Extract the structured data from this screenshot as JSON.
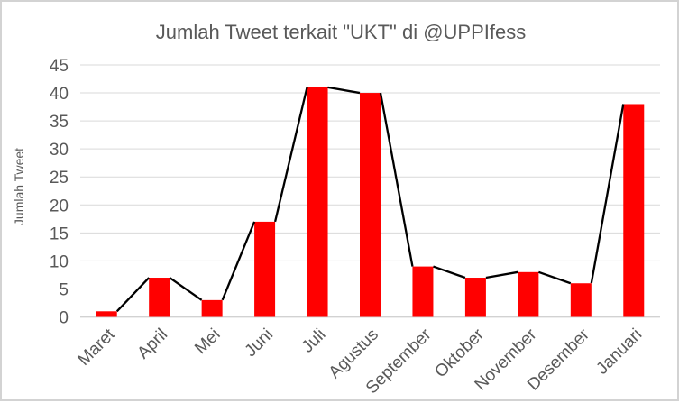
{
  "window": {
    "background": "#ffffff",
    "border_color": "#d3d3d3"
  },
  "chart_data": {
    "type": "bar",
    "subtype": "combo_bar_line",
    "title": "Jumlah Tweet terkait \"UKT\" di @UPPIfess",
    "xlabel": "",
    "ylabel": "Jumlah Tweet",
    "categories": [
      "Maret",
      "April",
      "Mei",
      "Juni",
      "Juli",
      "Agustus",
      "September",
      "Oktober",
      "November",
      "Desember",
      "Januari"
    ],
    "series": [
      {
        "name": "Jumlah Tweet (bars)",
        "type": "bar",
        "color": "#ff0000",
        "values": [
          1,
          7,
          3,
          17,
          41,
          40,
          9,
          7,
          8,
          6,
          38
        ]
      },
      {
        "name": "Jumlah Tweet (line)",
        "type": "line",
        "color": "#000000",
        "values": [
          1,
          7,
          3,
          17,
          41,
          40,
          9,
          7,
          8,
          6,
          38
        ]
      }
    ],
    "ylim": [
      0,
      45
    ],
    "ytick_step": 5,
    "ytick_labels": [
      "0",
      "5",
      "10",
      "15",
      "20",
      "25",
      "30",
      "35",
      "40",
      "45"
    ],
    "grid": true,
    "legend_position": "none",
    "x_label_rotation_deg": -45,
    "colors": {
      "bar": "#ff0000",
      "line": "#000000",
      "grid": "#d9d9d9",
      "axis": "#d2d2d2",
      "text": "#595959"
    }
  }
}
